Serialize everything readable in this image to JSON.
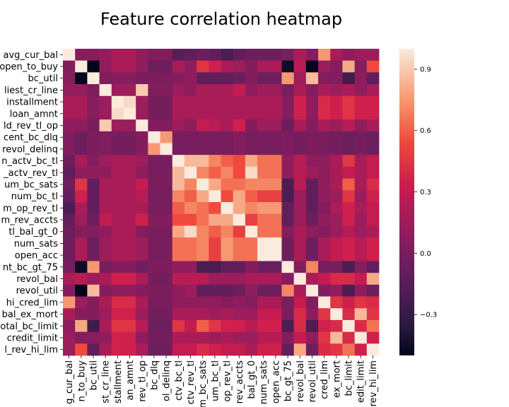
{
  "chart_data": {
    "type": "heatmap",
    "title": "Feature correlation heatmap",
    "row_labels": [
      "avg_cur_bal",
      "open_to_buy",
      "bc_util",
      "liest_cr_line",
      "installment",
      "loan_amnt",
      "ld_rev_tl_op",
      "cent_bc_dlq",
      "revol_delinq",
      "n_actv_bc_tl",
      "_actv_rev_tl",
      "um_bc_sats",
      "num_bc_tl",
      "m_op_rev_tl",
      "m_rev_accts",
      "tl_bal_gt_0",
      "num_sats",
      "open_acc",
      "nt_bc_gt_75",
      "revol_bal",
      "revol_util",
      "hi_cred_lim",
      "bal_ex_mort",
      "otal_bc_limit",
      "credit_limit",
      "l_rev_hi_lim"
    ],
    "col_labels": [
      "g_cur_bal",
      "n_to_buy",
      "bc_util",
      "st_cr_line",
      "stallment",
      "an_amnt",
      "rev_tl_op",
      "bc_dlq",
      "ol_delinq",
      "ctv_bc_tl",
      "ctv_rev_tl",
      "m_bc_sats",
      "um_bc_tl",
      "op_rev_tl",
      "rev_accts",
      "bal_gt_0",
      "num_sats",
      "open_acc",
      "bc_gt_75",
      "revol_bal",
      "revol_util",
      "cred_lim",
      "ex_mort",
      "bc_limit",
      "edit_limit",
      "rev_hi_lim"
    ],
    "colorbar_ticks": [
      "0.9",
      "0.6",
      "0.3",
      "0.0",
      "−0.3"
    ],
    "colorbar_tick_values": [
      0.9,
      0.6,
      0.3,
      0.0,
      -0.3
    ],
    "vmin": -0.5,
    "vmax": 1.0,
    "colormap": "rocket",
    "values": [
      [
        1.0,
        0.05,
        0.07,
        0.12,
        0.2,
        0.2,
        0.1,
        0.03,
        0.03,
        -0.15,
        -0.1,
        -0.05,
        -0.1,
        -0.2,
        -0.1,
        -0.05,
        -0.05,
        -0.05,
        0.0,
        0.2,
        0.05,
        0.75,
        0.2,
        0.1,
        0.15,
        0.15
      ],
      [
        0.05,
        1.0,
        -0.5,
        0.12,
        0.2,
        0.2,
        0.1,
        -0.05,
        -0.05,
        0.2,
        0.1,
        0.45,
        0.35,
        0.2,
        0.15,
        0.05,
        0.2,
        0.2,
        -0.45,
        0.25,
        -0.5,
        0.15,
        0.05,
        0.8,
        0.05,
        0.55
      ],
      [
        0.07,
        -0.5,
        1.0,
        0.03,
        0.06,
        0.06,
        0.0,
        0.02,
        0.02,
        0.05,
        0.1,
        -0.1,
        -0.1,
        -0.1,
        -0.05,
        0.05,
        -0.05,
        -0.05,
        0.75,
        0.15,
        0.85,
        0.05,
        0.05,
        -0.25,
        0.08,
        -0.1
      ],
      [
        0.12,
        0.12,
        0.03,
        1.0,
        0.15,
        0.15,
        0.9,
        0.03,
        0.03,
        0.15,
        0.1,
        0.2,
        0.2,
        0.2,
        0.3,
        0.1,
        0.15,
        0.15,
        0.0,
        0.2,
        0.05,
        0.2,
        0.15,
        0.2,
        0.1,
        0.2
      ],
      [
        0.2,
        0.2,
        0.06,
        0.15,
        1.0,
        0.95,
        0.15,
        -0.01,
        -0.01,
        0.2,
        0.2,
        0.2,
        0.2,
        0.2,
        0.2,
        0.2,
        0.2,
        0.2,
        0.05,
        0.35,
        0.1,
        0.4,
        0.35,
        0.45,
        0.35,
        0.35
      ],
      [
        0.2,
        0.2,
        0.06,
        0.15,
        0.95,
        1.0,
        0.15,
        -0.01,
        -0.01,
        0.2,
        0.2,
        0.2,
        0.2,
        0.2,
        0.2,
        0.2,
        0.2,
        0.2,
        0.05,
        0.35,
        0.1,
        0.4,
        0.35,
        0.45,
        0.35,
        0.35
      ],
      [
        0.1,
        0.1,
        0.0,
        0.9,
        0.15,
        0.15,
        1.0,
        0.05,
        0.05,
        0.15,
        0.1,
        0.3,
        0.25,
        0.2,
        0.35,
        0.05,
        0.15,
        0.15,
        -0.05,
        0.2,
        0.05,
        0.2,
        0.15,
        0.25,
        0.1,
        0.2
      ],
      [
        0.03,
        -0.05,
        0.02,
        0.03,
        -0.01,
        -0.01,
        0.05,
        1.0,
        0.75,
        0.0,
        0.0,
        0.0,
        0.0,
        0.0,
        0.05,
        0.0,
        0.0,
        0.0,
        0.02,
        -0.02,
        0.01,
        0.0,
        -0.02,
        -0.05,
        -0.02,
        -0.05
      ],
      [
        0.03,
        -0.05,
        0.02,
        0.03,
        -0.01,
        -0.01,
        0.05,
        0.75,
        1.0,
        0.0,
        0.0,
        0.0,
        0.0,
        0.0,
        0.05,
        0.0,
        0.0,
        0.0,
        0.02,
        -0.02,
        0.01,
        0.0,
        -0.02,
        -0.05,
        -0.02,
        -0.05
      ],
      [
        -0.05,
        0.2,
        0.05,
        0.15,
        0.2,
        0.2,
        0.15,
        0.0,
        0.0,
        1.0,
        0.85,
        0.85,
        0.7,
        0.6,
        0.55,
        0.8,
        0.65,
        0.65,
        0.1,
        0.25,
        0.1,
        0.1,
        0.2,
        0.45,
        0.2,
        0.3
      ],
      [
        -0.1,
        0.1,
        0.1,
        0.1,
        0.2,
        0.2,
        0.1,
        0.0,
        0.0,
        0.85,
        1.0,
        0.7,
        0.6,
        0.7,
        0.55,
        0.95,
        0.65,
        0.65,
        0.1,
        0.25,
        0.15,
        0.1,
        0.2,
        0.3,
        0.2,
        0.3
      ],
      [
        -0.05,
        0.45,
        -0.1,
        0.2,
        0.2,
        0.2,
        0.3,
        0.0,
        0.0,
        0.85,
        0.7,
        1.0,
        0.8,
        0.65,
        0.65,
        0.7,
        0.7,
        0.7,
        -0.2,
        0.25,
        -0.1,
        0.1,
        0.2,
        0.6,
        0.2,
        0.4
      ],
      [
        -0.1,
        0.35,
        -0.1,
        0.2,
        0.2,
        0.2,
        0.25,
        0.0,
        0.0,
        0.7,
        0.6,
        0.8,
        1.0,
        0.55,
        0.8,
        0.6,
        0.5,
        0.5,
        -0.2,
        0.15,
        -0.1,
        0.1,
        0.15,
        0.45,
        0.15,
        0.35
      ],
      [
        -0.2,
        0.2,
        -0.1,
        0.2,
        0.2,
        0.2,
        0.2,
        0.0,
        0.0,
        0.6,
        0.7,
        0.65,
        0.55,
        1.0,
        0.8,
        0.7,
        0.75,
        0.75,
        -0.1,
        0.15,
        -0.1,
        0.05,
        0.2,
        0.35,
        0.2,
        0.3
      ],
      [
        -0.1,
        0.15,
        -0.05,
        0.3,
        0.2,
        0.2,
        0.35,
        0.05,
        0.05,
        0.55,
        0.55,
        0.65,
        0.8,
        0.8,
        1.0,
        0.5,
        0.65,
        0.65,
        -0.1,
        0.15,
        -0.05,
        0.1,
        0.15,
        0.35,
        0.15,
        0.3
      ],
      [
        -0.05,
        0.05,
        0.05,
        0.1,
        0.2,
        0.2,
        0.05,
        0.0,
        0.0,
        0.8,
        0.95,
        0.7,
        0.6,
        0.7,
        0.5,
        1.0,
        0.65,
        0.65,
        0.05,
        0.2,
        0.1,
        0.05,
        0.15,
        0.25,
        0.15,
        0.2
      ],
      [
        -0.05,
        0.2,
        -0.05,
        0.15,
        0.2,
        0.2,
        0.15,
        0.0,
        0.0,
        0.65,
        0.65,
        0.7,
        0.5,
        0.75,
        0.65,
        0.65,
        1.0,
        1.0,
        -0.05,
        0.2,
        -0.05,
        0.2,
        0.3,
        0.35,
        0.25,
        0.35
      ],
      [
        -0.05,
        0.2,
        -0.05,
        0.15,
        0.2,
        0.2,
        0.15,
        0.0,
        0.0,
        0.65,
        0.65,
        0.7,
        0.5,
        0.75,
        0.65,
        0.65,
        1.0,
        1.0,
        -0.05,
        0.2,
        -0.05,
        0.2,
        0.3,
        0.35,
        0.25,
        0.35
      ],
      [
        0.0,
        -0.45,
        0.75,
        0.0,
        0.05,
        0.05,
        -0.05,
        0.02,
        0.02,
        0.1,
        0.1,
        -0.2,
        -0.2,
        -0.1,
        -0.1,
        0.05,
        -0.05,
        -0.05,
        1.0,
        0.05,
        0.7,
        0.0,
        0.0,
        -0.2,
        0.05,
        -0.1
      ],
      [
        0.2,
        0.25,
        0.15,
        0.2,
        0.35,
        0.35,
        0.2,
        -0.02,
        -0.02,
        0.25,
        0.25,
        0.25,
        0.15,
        0.15,
        0.15,
        0.2,
        0.2,
        0.2,
        0.05,
        1.0,
        0.2,
        0.3,
        0.4,
        0.4,
        0.3,
        0.8
      ],
      [
        0.05,
        -0.5,
        0.85,
        0.05,
        0.1,
        0.1,
        0.05,
        0.01,
        0.01,
        0.1,
        0.15,
        -0.1,
        -0.1,
        -0.1,
        -0.05,
        0.1,
        -0.05,
        -0.05,
        0.7,
        0.2,
        1.0,
        0.05,
        0.1,
        -0.2,
        0.1,
        -0.05
      ],
      [
        0.75,
        0.15,
        0.05,
        0.2,
        0.4,
        0.4,
        0.2,
        0.0,
        0.0,
        0.1,
        0.1,
        0.1,
        0.1,
        0.05,
        0.1,
        0.05,
        0.2,
        0.2,
        0.0,
        0.3,
        0.05,
        1.0,
        0.45,
        0.35,
        0.45,
        0.4
      ],
      [
        0.2,
        0.05,
        0.05,
        0.15,
        0.35,
        0.35,
        0.15,
        -0.02,
        -0.02,
        0.2,
        0.2,
        0.2,
        0.15,
        0.2,
        0.15,
        0.15,
        0.3,
        0.3,
        0.0,
        0.4,
        0.1,
        0.45,
        1.0,
        0.4,
        0.85,
        0.45
      ],
      [
        0.1,
        0.8,
        -0.25,
        0.2,
        0.45,
        0.45,
        0.25,
        -0.05,
        -0.05,
        0.45,
        0.3,
        0.6,
        0.45,
        0.35,
        0.35,
        0.25,
        0.35,
        0.35,
        -0.2,
        0.4,
        -0.2,
        0.35,
        0.4,
        1.0,
        0.4,
        0.65
      ],
      [
        0.15,
        0.05,
        0.08,
        0.1,
        0.35,
        0.35,
        0.1,
        -0.02,
        -0.02,
        0.2,
        0.2,
        0.2,
        0.15,
        0.2,
        0.15,
        0.15,
        0.25,
        0.25,
        0.05,
        0.3,
        0.1,
        0.45,
        0.85,
        0.4,
        1.0,
        0.35
      ],
      [
        0.15,
        0.55,
        -0.1,
        0.2,
        0.35,
        0.35,
        0.2,
        -0.05,
        -0.05,
        0.3,
        0.3,
        0.4,
        0.35,
        0.3,
        0.3,
        0.2,
        0.35,
        0.35,
        -0.1,
        0.8,
        -0.05,
        0.4,
        0.45,
        0.65,
        0.35,
        1.0
      ]
    ]
  }
}
